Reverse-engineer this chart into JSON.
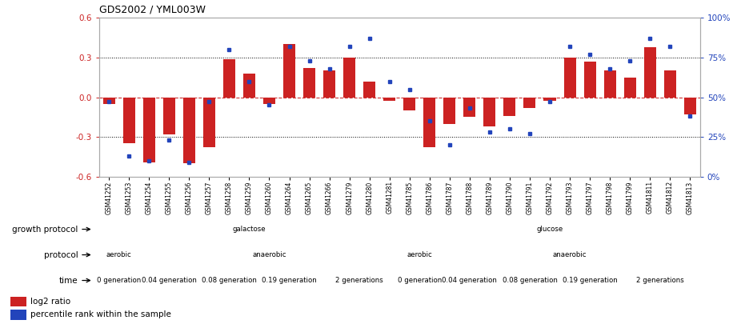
{
  "title": "GDS2002 / YML003W",
  "samples": [
    "GSM41252",
    "GSM41253",
    "GSM41254",
    "GSM41255",
    "GSM41256",
    "GSM41257",
    "GSM41258",
    "GSM41259",
    "GSM41260",
    "GSM41264",
    "GSM41265",
    "GSM41266",
    "GSM41279",
    "GSM41280",
    "GSM41281",
    "GSM41785",
    "GSM41786",
    "GSM41787",
    "GSM41788",
    "GSM41789",
    "GSM41790",
    "GSM41791",
    "GSM41792",
    "GSM41793",
    "GSM41797",
    "GSM41798",
    "GSM41799",
    "GSM41811",
    "GSM41812",
    "GSM41813"
  ],
  "log2_ratios": [
    -0.05,
    -0.35,
    -0.49,
    -0.28,
    -0.5,
    -0.38,
    0.29,
    0.18,
    -0.05,
    0.4,
    0.22,
    0.2,
    0.3,
    0.12,
    -0.03,
    -0.1,
    -0.38,
    -0.2,
    -0.15,
    -0.22,
    -0.14,
    -0.08,
    -0.03,
    0.3,
    0.27,
    0.2,
    0.15,
    0.38,
    0.2,
    -0.13
  ],
  "percentile_ranks": [
    47,
    13,
    10,
    23,
    9,
    47,
    80,
    60,
    45,
    82,
    73,
    68,
    82,
    87,
    60,
    55,
    35,
    20,
    43,
    28,
    30,
    27,
    47,
    82,
    77,
    68,
    73,
    87,
    82,
    38
  ],
  "bar_color": "#cc2222",
  "dot_color": "#2244bb",
  "ylim": [
    -0.6,
    0.6
  ],
  "y2lim": [
    0,
    100
  ],
  "yticks": [
    -0.6,
    -0.3,
    0.0,
    0.3,
    0.6
  ],
  "y2ticks": [
    0,
    25,
    50,
    75,
    100
  ],
  "y2ticklabels": [
    "0%",
    "25%",
    "50%",
    "75%",
    "100%"
  ],
  "hlines_dotted": [
    -0.3,
    0.3
  ],
  "hline_red": 0.0,
  "growth_protocol_row": {
    "label": "growth protocol",
    "segments": [
      {
        "text": "galactose",
        "start": 0,
        "end": 15,
        "color": "#b3e0b3"
      },
      {
        "text": "glucose",
        "start": 15,
        "end": 30,
        "color": "#5cc85c"
      }
    ]
  },
  "protocol_row": {
    "label": "protocol",
    "segments": [
      {
        "text": "aerobic",
        "start": 0,
        "end": 2,
        "color": "#b3b3e0"
      },
      {
        "text": "anaerobic",
        "start": 2,
        "end": 15,
        "color": "#7777cc"
      },
      {
        "text": "aerobic",
        "start": 15,
        "end": 17,
        "color": "#b3b3e0"
      },
      {
        "text": "anaerobic",
        "start": 17,
        "end": 30,
        "color": "#7777cc"
      }
    ]
  },
  "time_row": {
    "label": "time",
    "segments": [
      {
        "text": "0 generation",
        "start": 0,
        "end": 2,
        "color": "#f2d0d0"
      },
      {
        "text": "0.04 generation",
        "start": 2,
        "end": 5,
        "color": "#e0a0a0"
      },
      {
        "text": "0.08 generation",
        "start": 5,
        "end": 8,
        "color": "#d07878"
      },
      {
        "text": "0.19 generation",
        "start": 8,
        "end": 11,
        "color": "#c05050"
      },
      {
        "text": "2 generations",
        "start": 11,
        "end": 15,
        "color": "#b84040"
      },
      {
        "text": "0 generation",
        "start": 15,
        "end": 17,
        "color": "#f2d0d0"
      },
      {
        "text": "0.04 generation",
        "start": 17,
        "end": 20,
        "color": "#e0a0a0"
      },
      {
        "text": "0.08 generation",
        "start": 20,
        "end": 23,
        "color": "#d07878"
      },
      {
        "text": "0.19 generation",
        "start": 23,
        "end": 26,
        "color": "#c05050"
      },
      {
        "text": "2 generations",
        "start": 26,
        "end": 30,
        "color": "#b84040"
      }
    ]
  },
  "legend_items": [
    {
      "color": "#cc2222",
      "label": "log2 ratio"
    },
    {
      "color": "#2244bb",
      "label": "percentile rank within the sample"
    }
  ],
  "background_color": "#ffffff"
}
